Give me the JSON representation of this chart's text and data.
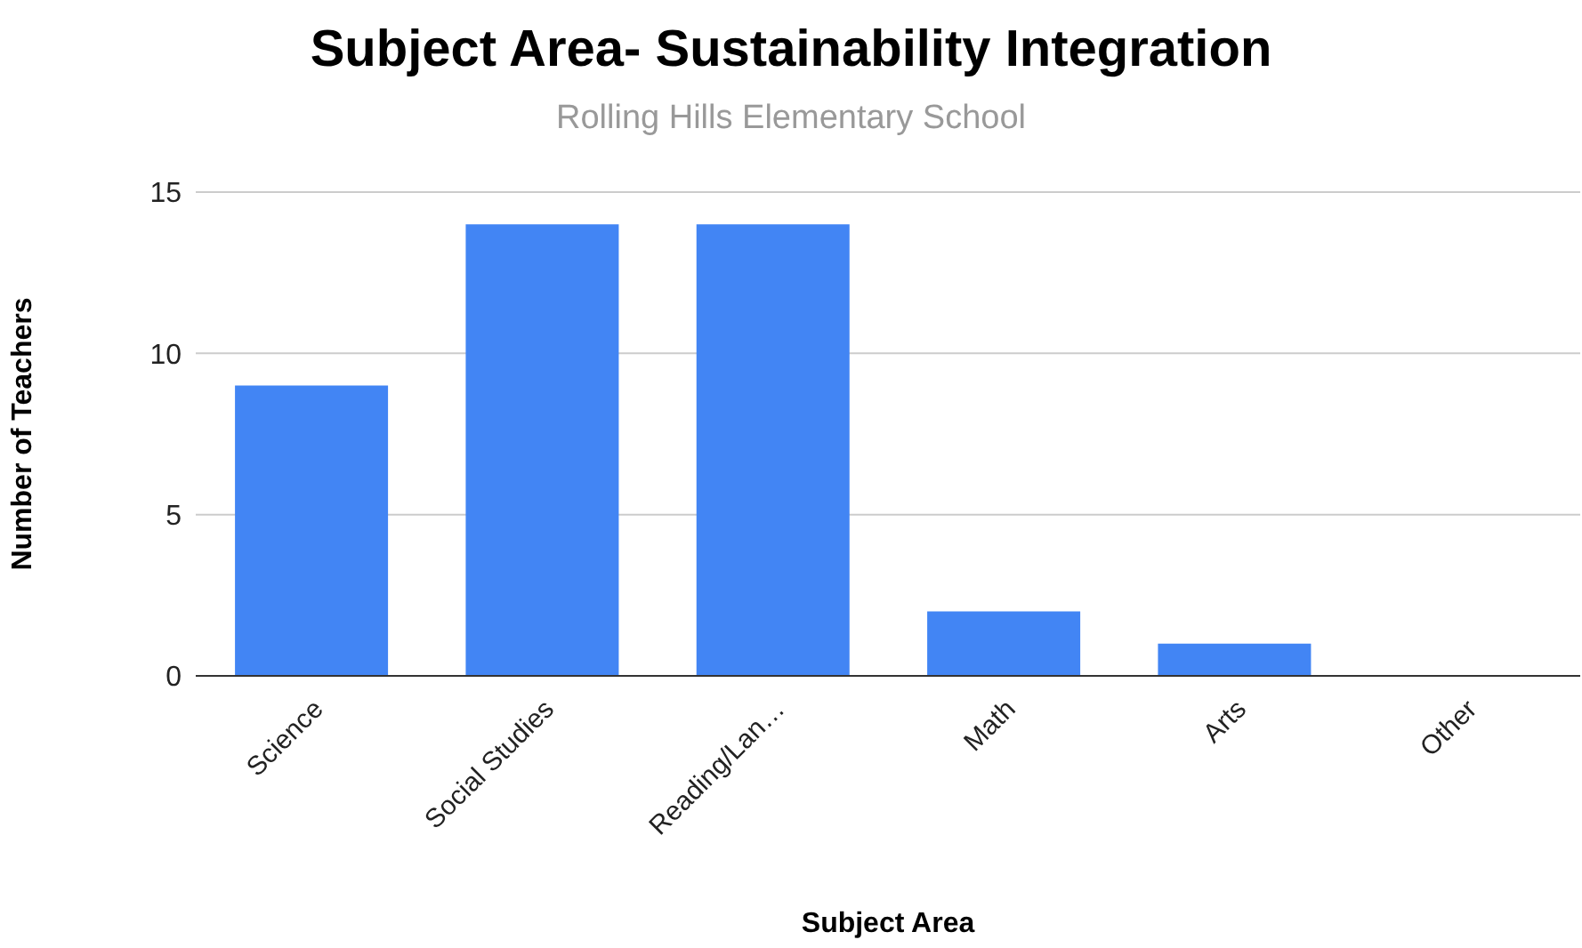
{
  "chart_data": {
    "type": "bar",
    "title": "Subject Area- Sustainability Integration",
    "subtitle": "Rolling Hills Elementary School",
    "xlabel": "Subject Area",
    "ylabel": "Number of Teachers",
    "categories": [
      "Science",
      "Social Studies",
      "Reading/Lan…",
      "Math",
      "Arts",
      "Other"
    ],
    "values": [
      9,
      14,
      14,
      2,
      1,
      0
    ],
    "color": "#4285f4",
    "ylim": [
      0,
      15
    ],
    "yticks": [
      0,
      5,
      10,
      15
    ],
    "grid": "y",
    "legend": false
  }
}
